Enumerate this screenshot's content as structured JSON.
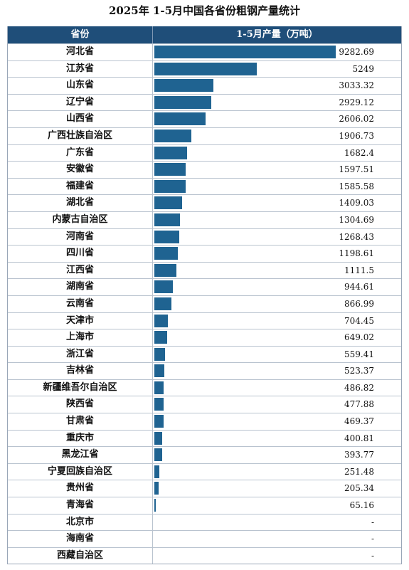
{
  "title": "2025年 1-5月中国各省份粗钢产量统计",
  "headers": {
    "province": "省份",
    "value": "1-5月产量（万吨）"
  },
  "colors": {
    "header_bg": "#1f4e79",
    "bar": "#1f6391"
  },
  "chart_data": {
    "type": "bar",
    "orientation": "horizontal",
    "title": "2025年 1-5月中国各省份粗钢产量统计",
    "ylabel": "1-5月产量（万吨）",
    "categories": [
      "河北省",
      "江苏省",
      "山东省",
      "辽宁省",
      "山西省",
      "广西壮族自治区",
      "广东省",
      "安徽省",
      "福建省",
      "湖北省",
      "内蒙古自治区",
      "河南省",
      "四川省",
      "江西省",
      "湖南省",
      "云南省",
      "天津市",
      "上海市",
      "浙江省",
      "吉林省",
      "新疆维吾尔自治区",
      "陕西省",
      "甘肃省",
      "重庆市",
      "黑龙江省",
      "宁夏回族自治区",
      "贵州省",
      "青海省",
      "北京市",
      "海南省",
      "西藏自治区"
    ],
    "values": [
      9282.69,
      5249,
      3033.32,
      2929.12,
      2606.02,
      1906.73,
      1682.4,
      1597.51,
      1585.58,
      1409.03,
      1304.69,
      1268.43,
      1198.61,
      1111.5,
      944.61,
      866.99,
      704.45,
      649.02,
      559.41,
      523.37,
      486.82,
      477.88,
      469.37,
      400.81,
      393.77,
      251.48,
      205.34,
      65.16,
      null,
      null,
      null
    ],
    "labels": [
      "9282.69",
      "5249",
      "3033.32",
      "2929.12",
      "2606.02",
      "1906.73",
      "1682.4",
      "1597.51",
      "1585.58",
      "1409.03",
      "1304.69",
      "1268.43",
      "1198.61",
      "1111.5",
      "944.61",
      "866.99",
      "704.45",
      "649.02",
      "559.41",
      "523.37",
      "486.82",
      "477.88",
      "469.37",
      "400.81",
      "393.77",
      "251.48",
      "205.34",
      "65.16",
      "-",
      "-",
      "-"
    ],
    "xlim": [
      0,
      9282.69
    ]
  }
}
